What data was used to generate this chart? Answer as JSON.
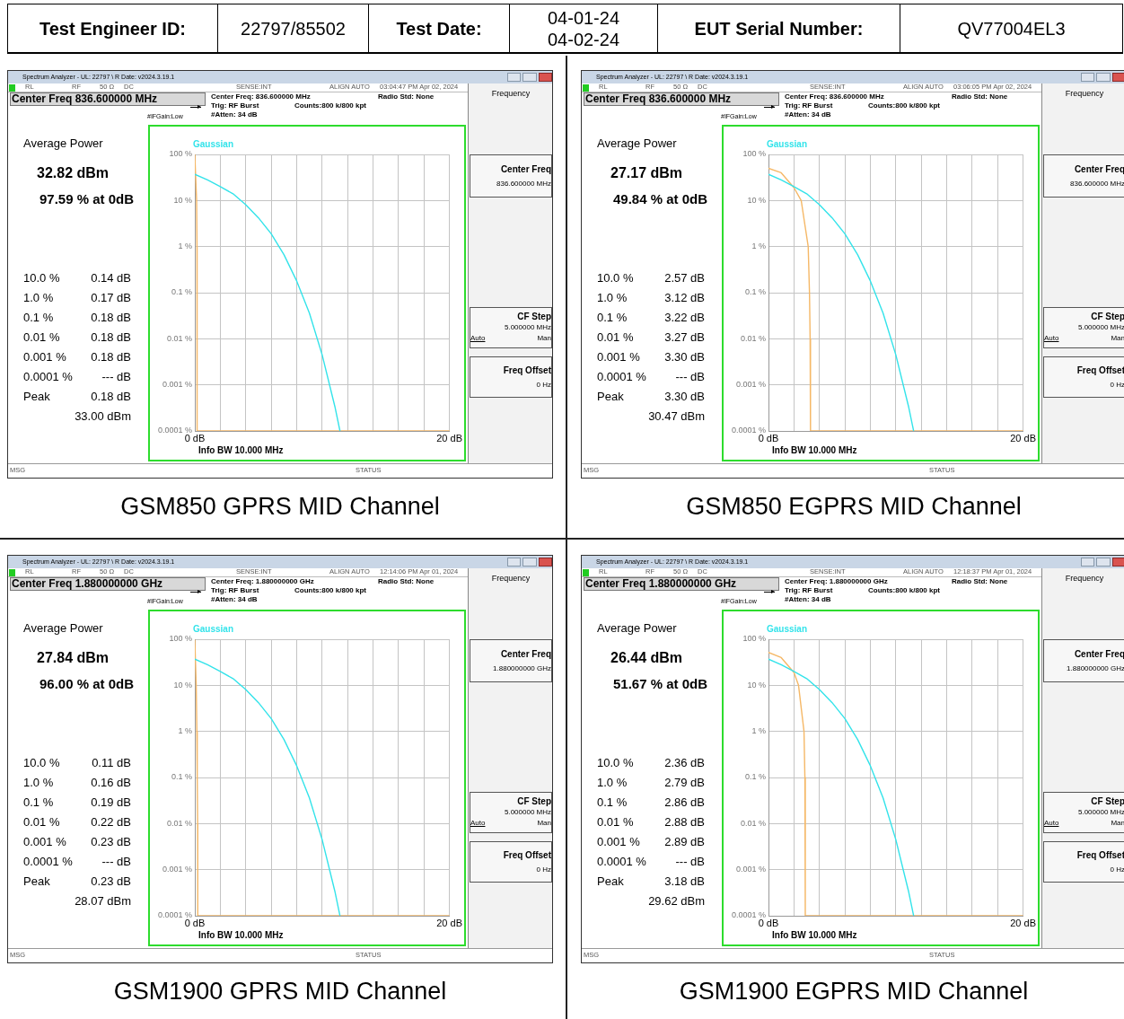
{
  "chart_data": [
    {
      "type": "other",
      "annotations": [
        "Test Engineer ID:",
        "22797/85502",
        "Test Date:",
        "04-01-24\n04-02-24",
        "EUT Serial Number:",
        "QV77004EL3"
      ]
    },
    {
      "type": "line",
      "title": "GSM850 GPRS MID Channel",
      "xlim": [
        0,
        20
      ],
      "ylim": [
        0.0001,
        100
      ],
      "log": "y",
      "grid": true,
      "marker": "none",
      "line_style": "solid",
      "xticks": [
        {
          "value": 0,
          "label": "0 dB"
        },
        {
          "value": 2,
          "label": null
        },
        {
          "value": 4,
          "label": null
        },
        {
          "value": 6,
          "label": null
        },
        {
          "value": 8,
          "label": null
        },
        {
          "value": 10,
          "label": null
        },
        {
          "value": 12,
          "label": null
        },
        {
          "value": 14,
          "label": null
        },
        {
          "value": 16,
          "label": null
        },
        {
          "value": 18,
          "label": null
        },
        {
          "value": 20,
          "label": "20 dB"
        }
      ],
      "yticks": [
        {
          "value": 0.0001,
          "label": "0.0001 %"
        },
        {
          "value": 0.001,
          "label": "0.001 %"
        },
        {
          "value": 0.01,
          "label": "0.01 %"
        },
        {
          "value": 0.1,
          "label": "0.1 %"
        },
        {
          "value": 1,
          "label": "1 %"
        },
        {
          "value": 10,
          "label": "10 %"
        },
        {
          "value": 100,
          "label": "100 %"
        }
      ],
      "series": [
        {
          "name": "Gaussian",
          "color": "#33e3ea",
          "x": [
            0,
            1,
            2,
            3,
            4,
            5,
            6,
            7,
            8,
            9,
            10,
            11,
            11.4
          ],
          "values": [
            37,
            28,
            20,
            14,
            8.1,
            4.2,
            1.9,
            0.67,
            0.18,
            0.036,
            0.0045,
            0.00034,
            0.0001
          ]
        },
        {
          "color": "#f5b867",
          "x": [
            0,
            0.14,
            0.17,
            0.18,
            0.18,
            0.18,
            0.18,
            20
          ],
          "values": [
            97.59,
            10,
            1,
            0.1,
            0.01,
            0.001,
            0.0001,
            0.0001
          ]
        }
      ],
      "annotations": [
        "Spectrum Analyzer - UL: 22797 \\ R Date: v2024.3.19.1",
        "RL",
        "RF",
        "50 Ω",
        "DC",
        "SENSE:INT",
        "ALIGN AUTO",
        "03:04:47 PM Apr 02, 2024",
        "Center Freq 836.600000 MHz",
        "Center Freq: 836.600000 MHz",
        "Trig: RF Burst",
        "#Atten: 34 dB",
        "Counts:800 k/800 kpt",
        "Radio Std: None",
        "#IFGain:Low",
        "Frequency",
        "Center Freq",
        "836.600000 MHz",
        "CF Step",
        "5.000000 MHz",
        "Auto",
        "Man",
        "Freq Offset",
        "0 Hz",
        "Average Power",
        "32.82 dBm",
        "97.59 % at 0dB",
        "10.0 %",
        "0.14 dB",
        "1.0 %",
        "0.17 dB",
        "0.1 %",
        "0.18 dB",
        "0.01 %",
        "0.18 dB",
        "0.001 %",
        "0.18 dB",
        "0.0001 %",
        "--- dB",
        "Peak",
        "0.18 dB",
        "33.00 dBm",
        "Info BW 10.000 MHz",
        "MSG",
        "STATUS"
      ]
    },
    {
      "type": "line",
      "title": "GSM850 EGPRS MID Channel",
      "xlim": [
        0,
        20
      ],
      "ylim": [
        0.0001,
        100
      ],
      "log": "y",
      "grid": true,
      "marker": "none",
      "line_style": "solid",
      "xticks": [
        {
          "value": 0,
          "label": "0 dB"
        },
        {
          "value": 2,
          "label": null
        },
        {
          "value": 4,
          "label": null
        },
        {
          "value": 6,
          "label": null
        },
        {
          "value": 8,
          "label": null
        },
        {
          "value": 10,
          "label": null
        },
        {
          "value": 12,
          "label": null
        },
        {
          "value": 14,
          "label": null
        },
        {
          "value": 16,
          "label": null
        },
        {
          "value": 18,
          "label": null
        },
        {
          "value": 20,
          "label": "20 dB"
        }
      ],
      "yticks": [
        {
          "value": 0.0001,
          "label": "0.0001 %"
        },
        {
          "value": 0.001,
          "label": "0.001 %"
        },
        {
          "value": 0.01,
          "label": "0.01 %"
        },
        {
          "value": 0.1,
          "label": "0.1 %"
        },
        {
          "value": 1,
          "label": "1 %"
        },
        {
          "value": 10,
          "label": "10 %"
        },
        {
          "value": 100,
          "label": "100 %"
        }
      ],
      "series": [
        {
          "name": "Gaussian",
          "color": "#33e3ea",
          "x": [
            0,
            1,
            2,
            3,
            4,
            5,
            6,
            7,
            8,
            9,
            10,
            11,
            11.4
          ],
          "values": [
            37,
            28,
            20,
            14,
            8.1,
            4.2,
            1.9,
            0.67,
            0.18,
            0.036,
            0.0045,
            0.00034,
            0.0001
          ]
        },
        {
          "color": "#f5b867",
          "x": [
            0,
            1,
            2,
            2.57,
            3.12,
            3.22,
            3.27,
            3.3,
            20
          ],
          "values": [
            49.84,
            40,
            19,
            10,
            1,
            0.1,
            0.01,
            0.0001,
            0.0001
          ]
        }
      ],
      "annotations": [
        "Spectrum Analyzer - UL: 22797 \\ R Date: v2024.3.19.1",
        "RL",
        "RF",
        "50 Ω",
        "DC",
        "SENSE:INT",
        "ALIGN AUTO",
        "03:06:05 PM Apr 02, 2024",
        "Center Freq 836.600000 MHz",
        "Center Freq: 836.600000 MHz",
        "Trig: RF Burst",
        "#Atten: 34 dB",
        "Counts:800 k/800 kpt",
        "Radio Std: None",
        "#IFGain:Low",
        "Frequency",
        "Center Freq",
        "836.600000 MHz",
        "CF Step",
        "5.000000 MHz",
        "Auto",
        "Man",
        "Freq Offset",
        "0 Hz",
        "Average Power",
        "27.17 dBm",
        "49.84 % at 0dB",
        "10.0 %",
        "2.57 dB",
        "1.0 %",
        "3.12 dB",
        "0.1 %",
        "3.22 dB",
        "0.01 %",
        "3.27 dB",
        "0.001 %",
        "3.30 dB",
        "0.0001 %",
        "--- dB",
        "Peak",
        "3.30 dB",
        "30.47 dBm",
        "Info BW 10.000 MHz",
        "MSG",
        "STATUS"
      ]
    },
    {
      "type": "line",
      "title": "GSM1900 GPRS MID Channel",
      "xlim": [
        0,
        20
      ],
      "ylim": [
        0.0001,
        100
      ],
      "log": "y",
      "grid": true,
      "marker": "none",
      "line_style": "solid",
      "xticks": [
        {
          "value": 0,
          "label": "0 dB"
        },
        {
          "value": 2,
          "label": null
        },
        {
          "value": 4,
          "label": null
        },
        {
          "value": 6,
          "label": null
        },
        {
          "value": 8,
          "label": null
        },
        {
          "value": 10,
          "label": null
        },
        {
          "value": 12,
          "label": null
        },
        {
          "value": 14,
          "label": null
        },
        {
          "value": 16,
          "label": null
        },
        {
          "value": 18,
          "label": null
        },
        {
          "value": 20,
          "label": "20 dB"
        }
      ],
      "yticks": [
        {
          "value": 0.0001,
          "label": "0.0001 %"
        },
        {
          "value": 0.001,
          "label": "0.001 %"
        },
        {
          "value": 0.01,
          "label": "0.01 %"
        },
        {
          "value": 0.1,
          "label": "0.1 %"
        },
        {
          "value": 1,
          "label": "1 %"
        },
        {
          "value": 10,
          "label": "10 %"
        },
        {
          "value": 100,
          "label": "100 %"
        }
      ],
      "series": [
        {
          "name": "Gaussian",
          "color": "#33e3ea",
          "x": [
            0,
            1,
            2,
            3,
            4,
            5,
            6,
            7,
            8,
            9,
            10,
            11,
            11.4
          ],
          "values": [
            37,
            28,
            20,
            14,
            8.1,
            4.2,
            1.9,
            0.67,
            0.18,
            0.036,
            0.0045,
            0.00034,
            0.0001
          ]
        },
        {
          "color": "#f5b867",
          "x": [
            0,
            0.11,
            0.16,
            0.19,
            0.22,
            0.23,
            20
          ],
          "values": [
            96,
            10,
            1,
            0.1,
            0.01,
            0.0001,
            0.0001
          ]
        }
      ],
      "annotations": [
        "Spectrum Analyzer - UL: 22797 \\ R Date: v2024.3.19.1",
        "RL",
        "RF",
        "50 Ω",
        "DC",
        "SENSE:INT",
        "ALIGN AUTO",
        "12:14:06 PM Apr 01, 2024",
        "Center Freq 1.880000000 GHz",
        "Center Freq: 1.880000000 GHz",
        "Trig: RF Burst",
        "#Atten: 34 dB",
        "Counts:800 k/800 kpt",
        "Radio Std: None",
        "#IFGain:Low",
        "Frequency",
        "Center Freq",
        "1.880000000 GHz",
        "CF Step",
        "5.000000 MHz",
        "Auto",
        "Man",
        "Freq Offset",
        "0 Hz",
        "Average Power",
        "27.84 dBm",
        "96.00 % at 0dB",
        "10.0 %",
        "0.11 dB",
        "1.0 %",
        "0.16 dB",
        "0.1 %",
        "0.19 dB",
        "0.01 %",
        "0.22 dB",
        "0.001 %",
        "0.23 dB",
        "0.0001 %",
        "--- dB",
        "Peak",
        "0.23 dB",
        "28.07 dBm",
        "Info BW 10.000 MHz",
        "MSG",
        "STATUS"
      ]
    },
    {
      "type": "line",
      "title": "GSM1900 EGPRS MID Channel",
      "xlim": [
        0,
        20
      ],
      "ylim": [
        0.0001,
        100
      ],
      "log": "y",
      "grid": true,
      "marker": "none",
      "line_style": "solid",
      "xticks": [
        {
          "value": 0,
          "label": "0 dB"
        },
        {
          "value": 2,
          "label": null
        },
        {
          "value": 4,
          "label": null
        },
        {
          "value": 6,
          "label": null
        },
        {
          "value": 8,
          "label": null
        },
        {
          "value": 10,
          "label": null
        },
        {
          "value": 12,
          "label": null
        },
        {
          "value": 14,
          "label": null
        },
        {
          "value": 16,
          "label": null
        },
        {
          "value": 18,
          "label": null
        },
        {
          "value": 20,
          "label": "20 dB"
        }
      ],
      "yticks": [
        {
          "value": 0.0001,
          "label": "0.0001 %"
        },
        {
          "value": 0.001,
          "label": "0.001 %"
        },
        {
          "value": 0.01,
          "label": "0.01 %"
        },
        {
          "value": 0.1,
          "label": "0.1 %"
        },
        {
          "value": 1,
          "label": "1 %"
        },
        {
          "value": 10,
          "label": "10 %"
        },
        {
          "value": 100,
          "label": "100 %"
        }
      ],
      "series": [
        {
          "name": "Gaussian",
          "color": "#33e3ea",
          "x": [
            0,
            1,
            2,
            3,
            4,
            5,
            6,
            7,
            8,
            9,
            10,
            11,
            11.4
          ],
          "values": [
            37,
            28,
            20,
            14,
            8.1,
            4.2,
            1.9,
            0.67,
            0.18,
            0.036,
            0.0045,
            0.00034,
            0.0001
          ]
        },
        {
          "color": "#f5b867",
          "x": [
            0,
            1,
            2,
            2.36,
            2.79,
            2.86,
            2.89,
            20
          ],
          "values": [
            51.67,
            40,
            19,
            10,
            1,
            0.1,
            0.0001,
            0.0001
          ]
        }
      ],
      "annotations": [
        "Spectrum Analyzer - UL: 22797 \\ R Date: v2024.3.19.1",
        "RL",
        "RF",
        "50 Ω",
        "DC",
        "SENSE:INT",
        "ALIGN AUTO",
        "12:18:37 PM Apr 01, 2024",
        "Center Freq 1.880000000 GHz",
        "Center Freq: 1.880000000 GHz",
        "Trig: RF Burst",
        "#Atten: 34 dB",
        "Counts:800 k/800 kpt",
        "Radio Std: None",
        "#IFGain:Low",
        "Frequency",
        "Center Freq",
        "1.880000000 GHz",
        "CF Step",
        "5.000000 MHz",
        "Auto",
        "Man",
        "Freq Offset",
        "0 Hz",
        "Average Power",
        "26.44 dBm",
        "51.67 % at 0dB",
        "10.0 %",
        "2.36 dB",
        "1.0 %",
        "2.79 dB",
        "0.1 %",
        "2.86 dB",
        "0.01 %",
        "2.88 dB",
        "0.001 %",
        "2.89 dB",
        "0.0001 %",
        "--- dB",
        "Peak",
        "3.18 dB",
        "29.62 dBm",
        "Info BW 10.000 MHz",
        "MSG",
        "STATUS"
      ]
    }
  ]
}
